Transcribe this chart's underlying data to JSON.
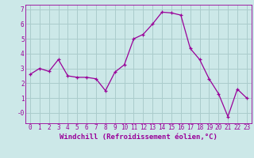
{
  "x": [
    0,
    1,
    2,
    3,
    4,
    5,
    6,
    7,
    8,
    9,
    10,
    11,
    12,
    13,
    14,
    15,
    16,
    17,
    18,
    19,
    20,
    21,
    22,
    23
  ],
  "y": [
    2.6,
    3.0,
    2.8,
    3.6,
    2.5,
    2.4,
    2.4,
    2.3,
    1.5,
    2.75,
    3.25,
    5.0,
    5.3,
    6.0,
    6.8,
    6.75,
    6.6,
    4.35,
    3.6,
    2.3,
    1.3,
    -0.25,
    1.6,
    1.0
  ],
  "line_color": "#990099",
  "marker": "+",
  "bg_color": "#cce8e8",
  "grid_color": "#aacccc",
  "xlabel": "Windchill (Refroidissement éolien,°C)",
  "xlabel_color": "#990099",
  "ylabel_ticks": [
    0,
    1,
    2,
    3,
    4,
    5,
    6,
    7
  ],
  "ytick_labels": [
    "-0",
    "1",
    "2",
    "3",
    "4",
    "5",
    "6",
    "7"
  ],
  "xtick_labels": [
    "0",
    "1",
    "2",
    "3",
    "4",
    "5",
    "6",
    "7",
    "8",
    "9",
    "10",
    "11",
    "12",
    "13",
    "14",
    "15",
    "16",
    "17",
    "18",
    "19",
    "20",
    "21",
    "22",
    "23"
  ],
  "ylim": [
    -0.7,
    7.3
  ],
  "xlim": [
    -0.5,
    23.5
  ],
  "tick_fontsize": 5.5,
  "label_fontsize": 6.5
}
